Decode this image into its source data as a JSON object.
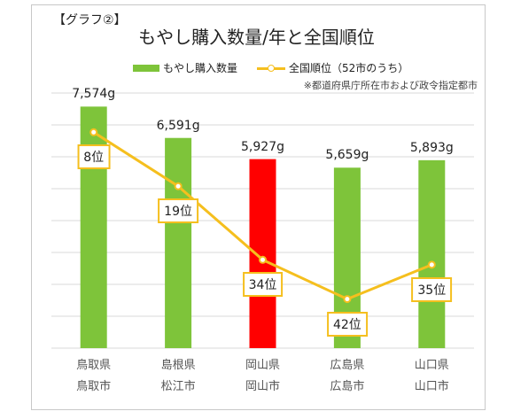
{
  "header": {
    "figure_label": "【グラフ②】",
    "title": "もやし購入数量/年と全国順位"
  },
  "legend": {
    "bar_label": "もやし購入数量",
    "line_label": "全国順位（52市のうち）"
  },
  "footnote": "※都道府県庁所在市および政令指定都市",
  "colors": {
    "bar": "#7ec43a",
    "highlight_bar": "#ff0000",
    "line": "#f5bf1e",
    "grid": "#d9d9d9"
  },
  "chart_data": {
    "type": "bar",
    "title": "もやし購入数量/年と全国順位",
    "categories": [
      [
        "鳥取県",
        "鳥取市"
      ],
      [
        "島根県",
        "松江市"
      ],
      [
        "岡山県",
        "岡山市"
      ],
      [
        "広島県",
        "広島市"
      ],
      [
        "山口県",
        "山口市"
      ]
    ],
    "series": [
      {
        "name": "もやし購入数量",
        "type": "bar",
        "values": [
          7574,
          6591,
          5927,
          5659,
          5893
        ],
        "value_labels": [
          "7,574g",
          "6,591g",
          "5,927g",
          "5,659g",
          "5,893g"
        ],
        "highlight_index": 2
      },
      {
        "name": "全国順位（52市のうち）",
        "type": "line",
        "values": [
          8,
          19,
          34,
          42,
          35
        ],
        "value_labels": [
          "8位",
          "19位",
          "34位",
          "42位",
          "35位"
        ]
      }
    ],
    "ylim": [
      0,
      8000
    ],
    "rank_axis": [
      0,
      52
    ],
    "grid": true,
    "legend_position": "top"
  }
}
